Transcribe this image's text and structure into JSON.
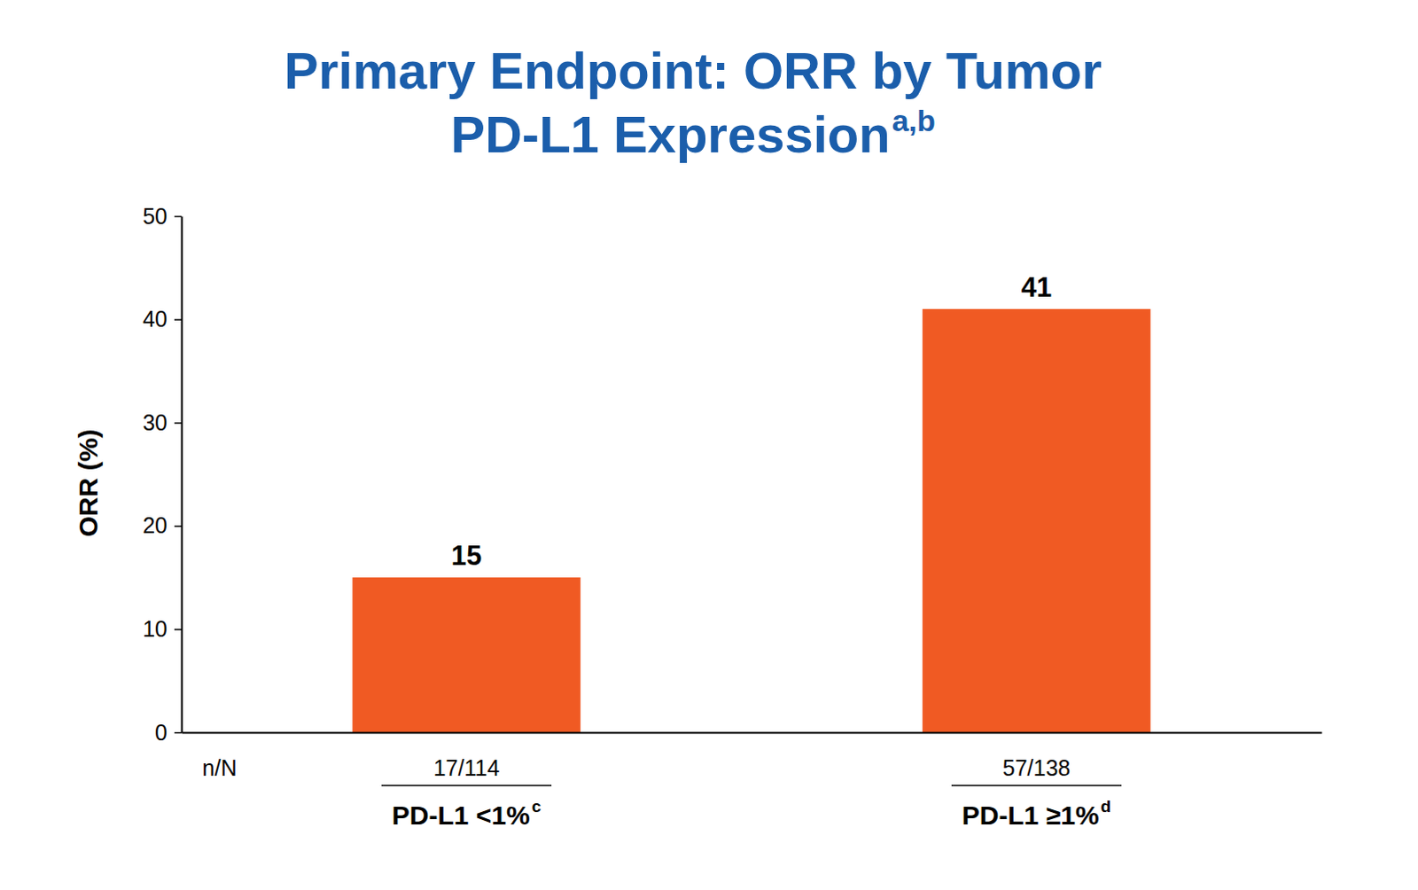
{
  "chart_data": {
    "type": "bar",
    "title": "Primary Endpoint: ORR by Tumor PD-L1 Expression",
    "title_note": "a,b",
    "y_label": "ORR (%)",
    "categories": [
      "PD-L1 <1%",
      "PD-L1 ≥1%"
    ],
    "category_notes": [
      "c",
      "d"
    ],
    "values": [
      15,
      41
    ],
    "n_label": "n/N",
    "n_values": [
      "17/114",
      "57/138"
    ],
    "color": "#f05a23",
    "ylim": [
      0,
      50
    ],
    "yticks": [
      0,
      10,
      20,
      30,
      40,
      50
    ],
    "grid": false,
    "data_labels": true
  }
}
